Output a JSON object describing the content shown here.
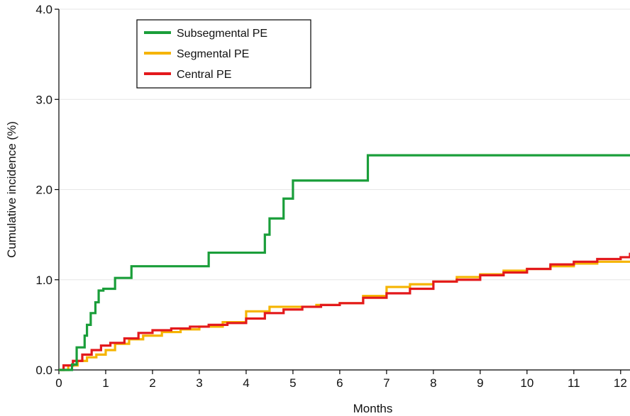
{
  "chart_data": {
    "type": "line",
    "step": true,
    "title": "",
    "xlabel": "Months",
    "ylabel": "Cumulative incidence (%)",
    "xlim": [
      0,
      12.2
    ],
    "ylim": [
      0,
      4.0
    ],
    "x_ticks": [
      "0",
      "1",
      "2",
      "3",
      "4",
      "5",
      "6",
      "7",
      "8",
      "9",
      "10",
      "11",
      "12"
    ],
    "y_ticks": [
      "0.0",
      "1.0",
      "2.0",
      "3.0",
      "4.0"
    ],
    "grid": "horizontal",
    "legend_position": "top-left",
    "series": [
      {
        "name": "Subsegmental PE",
        "color": "#1a9e3a",
        "x": [
          0,
          0.28,
          0.38,
          0.55,
          0.6,
          0.68,
          0.78,
          0.85,
          0.95,
          1.2,
          1.55,
          3.2,
          4.4,
          4.5,
          4.8,
          5.0,
          6.6,
          12.2
        ],
        "y": [
          0,
          0.06,
          0.25,
          0.38,
          0.5,
          0.63,
          0.75,
          0.88,
          0.9,
          1.02,
          1.15,
          1.3,
          1.5,
          1.68,
          1.9,
          2.1,
          2.38,
          2.38
        ]
      },
      {
        "name": "Segmental PE",
        "color": "#f5b400",
        "x": [
          0,
          0.2,
          0.4,
          0.6,
          0.8,
          1.0,
          1.2,
          1.5,
          1.8,
          2.2,
          2.6,
          3.0,
          3.5,
          4.0,
          4.5,
          5.0,
          5.5,
          6.0,
          6.5,
          7.0,
          7.5,
          8.0,
          8.5,
          9.0,
          9.5,
          10.0,
          10.5,
          11.0,
          11.5,
          12.0,
          12.2
        ],
        "y": [
          0,
          0.05,
          0.1,
          0.14,
          0.17,
          0.22,
          0.29,
          0.34,
          0.38,
          0.42,
          0.45,
          0.48,
          0.53,
          0.65,
          0.7,
          0.7,
          0.72,
          0.74,
          0.82,
          0.92,
          0.95,
          0.98,
          1.03,
          1.06,
          1.1,
          1.12,
          1.15,
          1.18,
          1.2,
          1.2,
          1.2
        ]
      },
      {
        "name": "Central PE",
        "color": "#e3191c",
        "x": [
          0,
          0.1,
          0.3,
          0.5,
          0.7,
          0.9,
          1.1,
          1.4,
          1.7,
          2.0,
          2.4,
          2.8,
          3.2,
          3.6,
          4.0,
          4.4,
          4.8,
          5.2,
          5.6,
          6.0,
          6.5,
          7.0,
          7.5,
          8.0,
          8.5,
          9.0,
          9.5,
          10.0,
          10.5,
          11.0,
          11.5,
          12.0,
          12.2
        ],
        "y": [
          0,
          0.05,
          0.1,
          0.17,
          0.22,
          0.27,
          0.3,
          0.35,
          0.41,
          0.44,
          0.46,
          0.48,
          0.5,
          0.52,
          0.57,
          0.63,
          0.67,
          0.7,
          0.72,
          0.74,
          0.8,
          0.85,
          0.9,
          0.98,
          1.0,
          1.05,
          1.08,
          1.12,
          1.17,
          1.2,
          1.23,
          1.25,
          1.3
        ]
      }
    ]
  }
}
